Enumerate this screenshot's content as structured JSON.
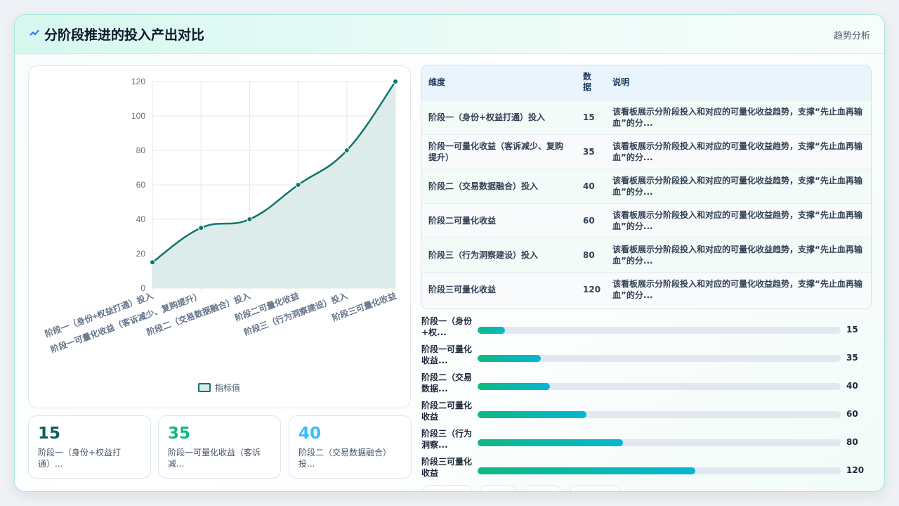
{
  "header": {
    "title": "分阶段推进的投入产出对比",
    "action": "趋势分析"
  },
  "chart_data": {
    "type": "line",
    "categories": [
      "阶段一（身份+权益打通）投入",
      "阶段一可量化收益（客诉减少、复购提升）",
      "阶段二（交易数据融合）投入",
      "阶段二可量化收益",
      "阶段三（行为洞察建设）投入",
      "阶段三可量化收益"
    ],
    "series": [
      {
        "name": "指标值",
        "values": [
          15,
          35,
          40,
          60,
          80,
          120
        ]
      }
    ],
    "ylim": [
      0,
      120
    ],
    "yticks": [
      0,
      20,
      40,
      60,
      80,
      100,
      120
    ],
    "fill": true,
    "grid": true,
    "legend": "bottom",
    "colors": {
      "line": "#0f766e",
      "fill": "#dbeaea"
    }
  },
  "kpis": [
    {
      "value": "15",
      "label": "阶段一（身份+权益打通）...",
      "color": "#0f5f5a"
    },
    {
      "value": "35",
      "label": "阶段一可量化收益（客诉减...",
      "color": "#10b981"
    },
    {
      "value": "40",
      "label": "阶段二（交易数据融合）投...",
      "color": "#38bdf8"
    }
  ],
  "table": {
    "headers": [
      "维度",
      "数据",
      "说明"
    ],
    "rows": [
      {
        "dim": "阶段一（身份+权益打通）投入",
        "val": "15",
        "desc": "该看板展示分阶段投入和对应的可量化收益趋势，支撑“先止血再输血”的分..."
      },
      {
        "dim": "阶段一可量化收益（客诉减少、复购提升）",
        "val": "35",
        "desc": "该看板展示分阶段投入和对应的可量化收益趋势，支撑“先止血再输血”的分..."
      },
      {
        "dim": "阶段二（交易数据融合）投入",
        "val": "40",
        "desc": "该看板展示分阶段投入和对应的可量化收益趋势，支撑“先止血再输血”的分..."
      },
      {
        "dim": "阶段二可量化收益",
        "val": "60",
        "desc": "该看板展示分阶段投入和对应的可量化收益趋势，支撑“先止血再输血”的分..."
      },
      {
        "dim": "阶段三（行为洞察建设）投入",
        "val": "80",
        "desc": "该看板展示分阶段投入和对应的可量化收益趋势，支撑“先止血再输血”的分..."
      },
      {
        "dim": "阶段三可量化收益",
        "val": "120",
        "desc": "该看板展示分阶段投入和对应的可量化收益趋势，支撑“先止血再输血”的分..."
      }
    ]
  },
  "bars": {
    "max": 200,
    "items": [
      {
        "label": "阶段一（身份+权...",
        "value": 15
      },
      {
        "label": "阶段一可量化收益...",
        "value": 35
      },
      {
        "label": "阶段二（交易数据...",
        "value": 40
      },
      {
        "label": "阶段二可量化收益",
        "value": 60
      },
      {
        "label": "阶段三（行为洞察...",
        "value": 80
      },
      {
        "label": "阶段三可量化收益",
        "value": 120
      }
    ]
  }
}
